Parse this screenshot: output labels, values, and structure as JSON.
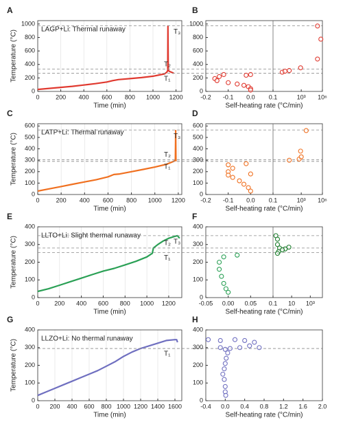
{
  "chart_data": [
    {
      "panel": "A",
      "type": "line",
      "annotation": "LAGP+Li: Thermal runaway",
      "x_label": "Time (min)",
      "y_label": "Temperature (°C)",
      "color": "#e0392f",
      "x": [
        0,
        100,
        200,
        300,
        400,
        500,
        600,
        650,
        700,
        800,
        900,
        1000,
        1100,
        1120,
        1128,
        1130,
        1133,
        1140,
        1180
      ],
      "values": [
        30,
        45,
        60,
        75,
        95,
        115,
        140,
        160,
        175,
        190,
        205,
        225,
        260,
        285,
        310,
        970,
        320,
        300,
        270
      ],
      "xlim": [
        0,
        1250
      ],
      "xticks": [
        0,
        200,
        400,
        600,
        800,
        1000,
        1200
      ],
      "ylim": [
        0,
        1050
      ],
      "yticks": [
        0,
        200,
        400,
        600,
        800,
        1000
      ],
      "grid": true,
      "temperature_marks": [
        {
          "label": "T₁",
          "value": 268
        },
        {
          "label": "T₂",
          "value": 330
        },
        {
          "label": "T₃",
          "value": 975
        }
      ]
    },
    {
      "panel": "B",
      "type": "scatter",
      "x_label": "Self-heating rate (°C/min)",
      "ylim": [
        0,
        1050
      ],
      "yticks": [
        0,
        200,
        400,
        600,
        800,
        1000
      ],
      "segments": [
        {
          "color": "#e0392f",
          "xlim": [
            -0.2,
            0.1
          ],
          "xticks": [
            -0.2,
            -0.1,
            {
              "value": 0,
              "label": "0.0"
            },
            0.1
          ],
          "x": [
            -0.12,
            0,
            -0.02,
            -0.14,
            -0.16,
            -0.15,
            -0.1,
            -0.06,
            -0.03,
            -0.01,
            0,
            0
          ],
          "y": [
            250,
            250,
            240,
            220,
            190,
            160,
            130,
            110,
            90,
            70,
            40,
            20
          ]
        },
        {
          "color": "#e0392f",
          "log": true,
          "xlim": [
            0.1,
            1000000
          ],
          "xticks": [
            {
              "value": 1000,
              "label": "10³"
            },
            {
              "value": 1000000,
              "label": "10⁶"
            }
          ],
          "x": [
            2,
            5,
            20,
            800,
            200000,
            600000,
            200000
          ],
          "y": [
            285,
            300,
            310,
            350,
            480,
            775,
            970
          ]
        }
      ]
    },
    {
      "panel": "C",
      "type": "line",
      "annotation": "LATP+Li: Thermal runaway",
      "x_label": "Time (min)",
      "y_label": "Temperature (°C)",
      "color": "#f07020",
      "x": [
        0,
        100,
        200,
        300,
        400,
        500,
        600,
        650,
        700,
        800,
        900,
        1000,
        1100,
        1160,
        1175,
        1178,
        1180
      ],
      "values": [
        30,
        50,
        70,
        90,
        110,
        130,
        155,
        175,
        180,
        200,
        220,
        240,
        265,
        290,
        300,
        560,
        290
      ],
      "xlim": [
        0,
        1230
      ],
      "xticks": [
        0,
        200,
        400,
        600,
        800,
        1000,
        1200
      ],
      "ylim": [
        0,
        620
      ],
      "yticks": [
        0,
        100,
        200,
        300,
        400,
        500,
        600
      ],
      "grid": true,
      "temperature_marks": [
        {
          "label": "T₁",
          "value": 290
        },
        {
          "label": "T₂",
          "value": 305
        },
        {
          "label": "T₃",
          "value": 565
        }
      ]
    },
    {
      "panel": "D",
      "type": "scatter",
      "x_label": "Self-heating rate (°C/min)",
      "ylim": [
        0,
        620
      ],
      "yticks": [
        0,
        100,
        200,
        300,
        400,
        500,
        600
      ],
      "segments": [
        {
          "color": "#f07020",
          "xlim": [
            -0.2,
            0.1
          ],
          "xticks": [
            -0.2,
            -0.1,
            {
              "value": 0,
              "label": "0.0"
            },
            0.1
          ],
          "x": [
            -0.02,
            -0.1,
            -0.08,
            -0.1,
            0,
            -0.1,
            -0.08,
            -0.05,
            -0.03,
            -0.01,
            0
          ],
          "y": [
            270,
            260,
            230,
            200,
            180,
            170,
            150,
            120,
            90,
            60,
            30
          ]
        },
        {
          "color": "#f07020",
          "log": true,
          "xlim": [
            0.1,
            1000000
          ],
          "xticks": [
            {
              "value": 1000,
              "label": "10³"
            },
            {
              "value": 1000000,
              "label": "10⁶"
            }
          ],
          "x": [
            20,
            500,
            1000,
            800,
            5000
          ],
          "y": [
            300,
            310,
            330,
            380,
            560
          ]
        }
      ]
    },
    {
      "panel": "E",
      "type": "line",
      "annotation": "LLTO+Li: Slight thermal runaway",
      "x_label": "Time (min)",
      "y_label": "Temperature (°C)",
      "color": "#2aa055",
      "x": [
        0,
        100,
        200,
        300,
        400,
        500,
        600,
        700,
        800,
        900,
        1000,
        1050,
        1060,
        1100,
        1150,
        1200,
        1250,
        1280,
        1300
      ],
      "values": [
        35,
        50,
        70,
        90,
        110,
        130,
        150,
        165,
        185,
        205,
        230,
        250,
        280,
        300,
        320,
        335,
        345,
        350,
        335
      ],
      "xlim": [
        0,
        1320
      ],
      "xticks": [
        0,
        200,
        400,
        600,
        800,
        1000,
        1200
      ],
      "ylim": [
        0,
        400
      ],
      "yticks": [
        0,
        100,
        200,
        300,
        400
      ],
      "grid": true,
      "temperature_marks": [
        {
          "label": "T₁",
          "value": 255
        },
        {
          "label": "T₂",
          "value": 280
        },
        {
          "label": "T₃",
          "value": 350
        }
      ]
    },
    {
      "panel": "F",
      "type": "scatter",
      "x_label": "Self-heating rate (°C/min)",
      "ylim": [
        0,
        400
      ],
      "yticks": [
        0,
        100,
        200,
        300,
        400
      ],
      "segments": [
        {
          "color": "#2aa055",
          "xlim": [
            -0.05,
            0.1
          ],
          "xticks": [
            -0.05,
            {
              "value": 0,
              "label": "0.00"
            },
            0.05,
            0.1
          ],
          "x": [
            0.02,
            -0.01,
            -0.02,
            -0.02,
            -0.015,
            -0.01,
            -0.005,
            0
          ],
          "y": [
            240,
            230,
            200,
            160,
            120,
            80,
            50,
            30
          ]
        },
        {
          "color": "#1a7a2a",
          "log": true,
          "xlim": [
            0.1,
            20000
          ],
          "xticks": [
            10,
            {
              "value": 1000,
              "label": "10³"
            }
          ],
          "x": [
            0.2,
            0.3,
            0.3,
            0.5,
            2,
            5,
            1,
            0.4,
            0.3
          ],
          "y": [
            350,
            330,
            300,
            280,
            275,
            285,
            270,
            260,
            250
          ]
        }
      ]
    },
    {
      "panel": "G",
      "type": "line",
      "annotation": "LLZO+Li: No thermal runaway",
      "x_label": "Time (min)",
      "y_label": "Temperature (°C)",
      "color": "#6f6fc0",
      "x": [
        0,
        100,
        200,
        300,
        400,
        500,
        600,
        700,
        800,
        900,
        1000,
        1100,
        1200,
        1300,
        1400,
        1500,
        1600,
        1620,
        1630
      ],
      "values": [
        30,
        50,
        70,
        90,
        110,
        130,
        150,
        170,
        195,
        220,
        250,
        275,
        295,
        310,
        325,
        340,
        345,
        345,
        330
      ],
      "xlim": [
        0,
        1680
      ],
      "xticks": [
        0,
        200,
        400,
        600,
        800,
        1000,
        1200,
        1400,
        1600
      ],
      "ylim": [
        0,
        400
      ],
      "yticks": [
        0,
        100,
        200,
        300,
        400
      ],
      "grid": true,
      "temperature_marks": [
        {
          "label": "T₁",
          "value": 295
        }
      ]
    },
    {
      "panel": "H",
      "type": "scatter",
      "x_label": "Self-heating rate (°C/min)",
      "ylim": [
        0,
        400
      ],
      "yticks": [
        0,
        100,
        200,
        300,
        400
      ],
      "segments": [
        {
          "color": "#6f6fc0",
          "xlim": [
            -0.4,
            2.0
          ],
          "xticks": [
            -0.4,
            {
              "value": 0,
              "label": "0.0"
            },
            0.4,
            0.8,
            1.2,
            1.6,
            {
              "value": 2,
              "label": "2.0"
            }
          ],
          "x": [
            -0.35,
            -0.1,
            0.2,
            0.4,
            0.6,
            0.7,
            0.5,
            0.3,
            0.1,
            -0.1,
            0,
            0.05,
            0.02,
            0,
            -0.02,
            -0.05,
            -0.02,
            0,
            0,
            0.01
          ],
          "y": [
            345,
            340,
            345,
            340,
            330,
            300,
            310,
            300,
            295,
            300,
            290,
            270,
            240,
            210,
            180,
            150,
            120,
            80,
            50,
            30
          ]
        }
      ]
    }
  ]
}
